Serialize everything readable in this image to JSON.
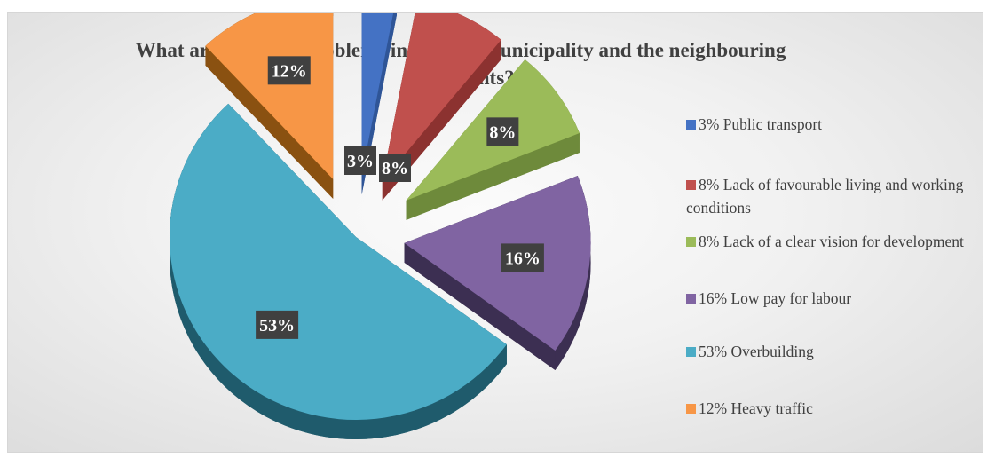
{
  "chart_data": {
    "type": "pie",
    "style": "3d-exploded",
    "title": "What are the main problems in Plovdiv municipality and the neighbouring settlements?",
    "title_lines": [
      "What are the main problems in Plovdiv municipality and the neighbouring",
      "settlements?"
    ],
    "legend_position": "right",
    "slices": [
      {
        "label": "3% Public transport",
        "value": 3,
        "data_label": "3%",
        "color": "#4472c4",
        "side": "#2f5597"
      },
      {
        "label": "8% Lack of favourable living and working conditions",
        "value": 8,
        "data_label": "8%",
        "color": "#c0504d",
        "side": "#8c3230"
      },
      {
        "label": "8% Lack of a clear vision for development",
        "value": 8,
        "data_label": "8%",
        "color": "#9bbb59",
        "side": "#6e8a3b"
      },
      {
        "label": "16% Low pay for labour",
        "value": 16,
        "data_label": "16%",
        "color": "#8064a2",
        "side": "#3c2f52"
      },
      {
        "label": "53% Overbuilding",
        "value": 53,
        "data_label": "53%",
        "color": "#4bacc6",
        "side": "#1f5b6c"
      },
      {
        "label": "12% Heavy traffic",
        "value": 12,
        "data_label": "12%",
        "color": "#f79646",
        "side": "#8a5111"
      }
    ]
  }
}
